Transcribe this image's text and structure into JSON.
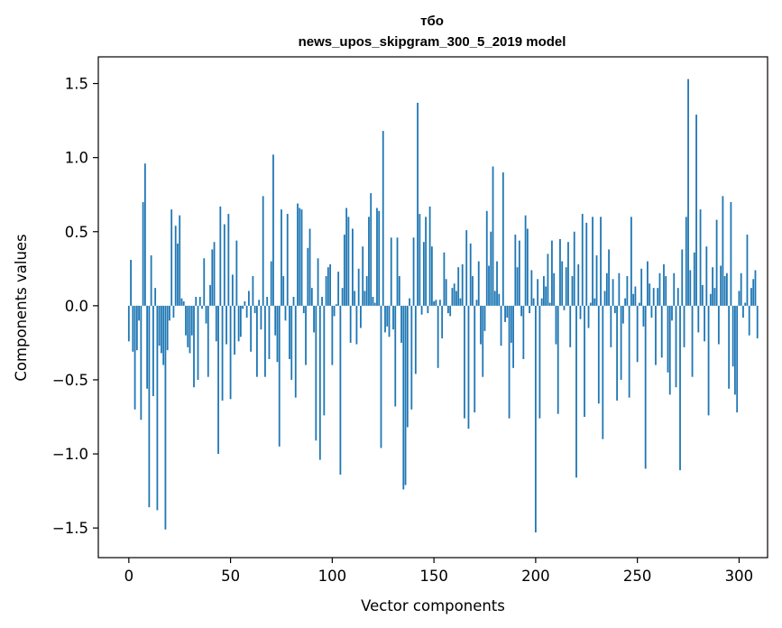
{
  "chart_data": {
    "type": "bar",
    "title_line1": "тбо",
    "title_line2": "news_upos_skipgram_300_5_2019 model",
    "xlabel": "Vector components",
    "ylabel": "Components values",
    "xlim": [
      -15,
      314
    ],
    "ylim": [
      -1.7,
      1.68
    ],
    "x_ticks": [
      0,
      50,
      100,
      150,
      200,
      250,
      300
    ],
    "y_ticks": [
      -1.5,
      -1.0,
      -0.5,
      0.0,
      0.5,
      1.0,
      1.5
    ],
    "y_tick_labels": [
      "−1.5",
      "−1.0",
      "−0.5",
      "0.0",
      "0.5",
      "1.0",
      "1.5"
    ],
    "bar_color": "#1f77b4",
    "values": [
      -0.24,
      0.31,
      -0.31,
      -0.7,
      -0.3,
      -0.1,
      -0.77,
      0.7,
      0.96,
      -0.56,
      -1.36,
      0.34,
      -0.61,
      0.12,
      -1.38,
      -0.27,
      -0.32,
      -0.4,
      -1.51,
      -0.3,
      -0.1,
      0.65,
      -0.08,
      0.54,
      0.42,
      0.61,
      0.05,
      0.03,
      -0.2,
      -0.28,
      -0.32,
      -0.2,
      -0.55,
      0.06,
      -0.5,
      0.06,
      -0.02,
      0.32,
      -0.12,
      -0.48,
      0.14,
      0.38,
      0.43,
      -0.24,
      -1.0,
      0.67,
      -0.64,
      0.55,
      -0.26,
      0.62,
      -0.63,
      0.21,
      -0.33,
      0.44,
      -0.24,
      -0.21,
      -0.02,
      0.03,
      -0.08,
      0.1,
      -0.31,
      0.2,
      -0.05,
      -0.48,
      0.04,
      -0.16,
      0.74,
      -0.48,
      0.06,
      -0.36,
      0.3,
      1.02,
      -0.2,
      -0.38,
      -0.95,
      0.65,
      0.2,
      -0.1,
      0.62,
      -0.36,
      -0.5,
      0.06,
      -0.62,
      0.69,
      0.66,
      0.65,
      -0.05,
      -0.4,
      0.39,
      0.52,
      0.12,
      -0.18,
      -0.91,
      0.32,
      -1.04,
      0.06,
      -0.74,
      0.2,
      0.26,
      0.28,
      -0.4,
      -0.07,
      0.01,
      0.23,
      -1.14,
      0.12,
      0.48,
      0.66,
      0.6,
      -0.25,
      0.52,
      0.1,
      -0.26,
      0.25,
      -0.15,
      0.4,
      0.1,
      0.2,
      0.6,
      0.76,
      0.06,
      0.02,
      0.66,
      0.64,
      -0.96,
      1.18,
      -0.18,
      -0.14,
      -0.21,
      0.46,
      -0.16,
      -0.68,
      0.46,
      0.2,
      -0.25,
      -1.24,
      -1.21,
      -0.82,
      0.05,
      -0.7,
      0.46,
      -0.46,
      1.37,
      0.62,
      -0.06,
      0.43,
      0.6,
      -0.05,
      0.67,
      0.4,
      0.03,
      0.04,
      -0.42,
      0.04,
      -0.22,
      0.36,
      0.18,
      -0.05,
      -0.07,
      0.12,
      0.15,
      0.1,
      0.26,
      0.05,
      0.28,
      -0.76,
      0.51,
      -0.83,
      0.42,
      0.2,
      -0.72,
      0.04,
      0.3,
      -0.26,
      -0.48,
      -0.17,
      0.64,
      0.27,
      0.5,
      0.94,
      0.1,
      0.3,
      0.08,
      -0.27,
      0.9,
      -0.11,
      -0.08,
      -0.76,
      -0.25,
      -0.42,
      0.48,
      0.26,
      0.44,
      -0.07,
      -0.36,
      0.61,
      0.52,
      -0.05,
      0.24,
      0.05,
      -1.53,
      0.18,
      -0.76,
      0.05,
      0.2,
      0.13,
      0.35,
      0.02,
      0.44,
      0.22,
      -0.26,
      -0.73,
      0.45,
      0.3,
      -0.03,
      0.26,
      0.43,
      -0.28,
      0.2,
      0.5,
      -1.16,
      0.28,
      -0.09,
      0.62,
      -0.75,
      0.56,
      -0.15,
      0.02,
      0.6,
      0.05,
      0.34,
      -0.66,
      0.6,
      -0.9,
      0.1,
      0.22,
      0.38,
      -0.28,
      0.18,
      -0.05,
      -0.64,
      0.22,
      -0.5,
      -0.12,
      0.05,
      0.2,
      -0.62,
      0.6,
      0.08,
      0.13,
      -0.38,
      0.02,
      0.25,
      -0.14,
      -1.1,
      0.3,
      0.15,
      -0.08,
      0.12,
      -0.4,
      0.12,
      0.22,
      -0.35,
      0.28,
      0.2,
      -0.45,
      -0.6,
      -0.1,
      0.22,
      -0.55,
      0.12,
      -1.11,
      0.38,
      -0.28,
      0.6,
      1.53,
      0.24,
      -0.48,
      0.36,
      1.29,
      -0.18,
      0.65,
      0.14,
      -0.24,
      0.4,
      -0.74,
      0.08,
      0.26,
      0.12,
      0.58,
      -0.26,
      0.27,
      0.74,
      0.2,
      0.22,
      -0.56,
      0.7,
      -0.41,
      -0.6,
      -0.72,
      0.1,
      0.22,
      -0.08,
      0.02,
      0.48,
      -0.2,
      0.12,
      0.18,
      0.24,
      -0.22
    ]
  }
}
